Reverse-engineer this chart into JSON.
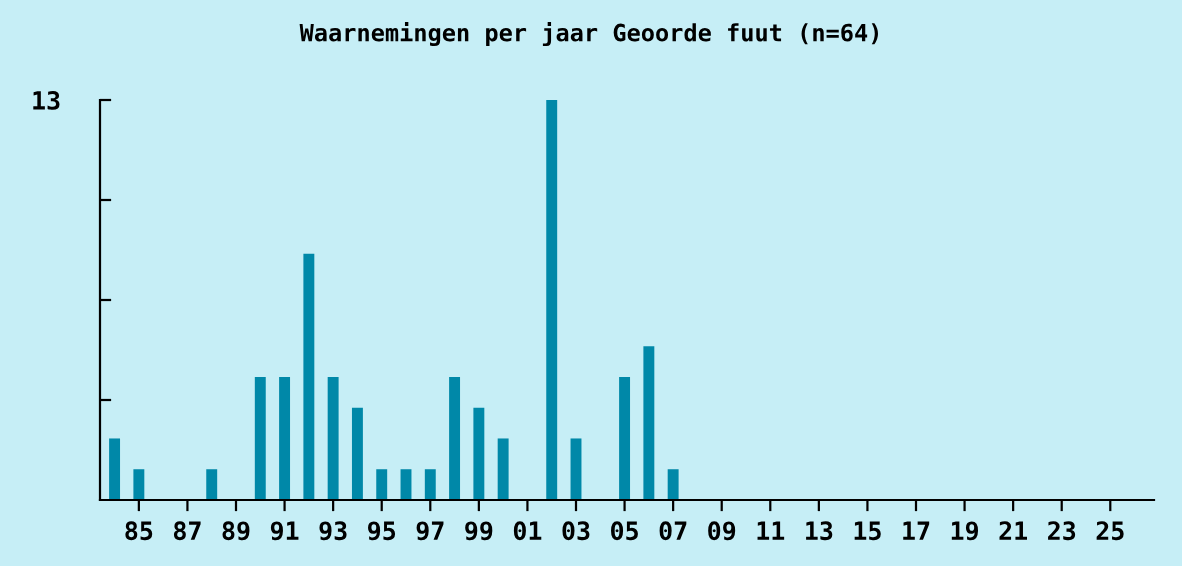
{
  "chart_data": {
    "type": "bar",
    "title": "Waarnemingen per jaar Geoorde fuut (n=64)",
    "categories": [
      null,
      "85",
      null,
      "87",
      null,
      "89",
      null,
      "91",
      null,
      "93",
      null,
      "95",
      null,
      "97",
      null,
      "99",
      null,
      "01",
      null,
      "03",
      null,
      "05",
      null,
      "07",
      null,
      "09",
      null,
      "11",
      null,
      "13",
      null,
      "15",
      null,
      "17",
      null,
      "19",
      null,
      "21",
      null,
      "23",
      null,
      "25",
      null
    ],
    "values": [
      2,
      1,
      0,
      0,
      1,
      0,
      4,
      4,
      8,
      4,
      3,
      1,
      1,
      1,
      4,
      3,
      2,
      0,
      13,
      2,
      0,
      4,
      5,
      1,
      0,
      0,
      0,
      0,
      0,
      0,
      0,
      0,
      0,
      0,
      0,
      0,
      0,
      0,
      0,
      0,
      0,
      0,
      0
    ],
    "color": "#0088a8",
    "ylim": [
      0,
      13
    ],
    "yticks": [
      {
        "value": 3.25,
        "label": null
      },
      {
        "value": 6.5,
        "label": null
      },
      {
        "value": 9.75,
        "label": null
      },
      13
    ],
    "grid": false,
    "legend": false
  }
}
